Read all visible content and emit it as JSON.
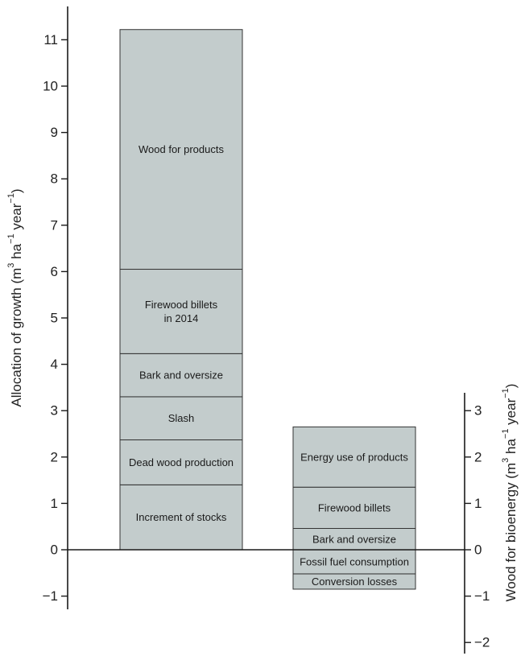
{
  "colors": {
    "bar_fill": "#c3cccc",
    "bar_stroke": "#333333",
    "axis": "#1a1a1a",
    "background": "#ffffff"
  },
  "chart_data": {
    "type": "bar",
    "stacked": true,
    "grid": false,
    "legend": "none",
    "left_axis": {
      "label_parts": [
        {
          "text": "Allocation of growth (m",
          "sup": false
        },
        {
          "text": "3",
          "sup": true
        },
        {
          "text": " ha",
          "sup": false
        },
        {
          "text": "−1",
          "sup": true
        },
        {
          "text": " year",
          "sup": false
        },
        {
          "text": "−1",
          "sup": true
        },
        {
          "text": ")",
          "sup": false
        }
      ],
      "ylim": [
        -1.3,
        11.9
      ],
      "ticks": [
        -1,
        0,
        1,
        2,
        3,
        4,
        5,
        6,
        7,
        8,
        9,
        10,
        11
      ],
      "tick_labels": [
        "−1",
        "0",
        "1",
        "2",
        "3",
        "4",
        "5",
        "6",
        "7",
        "8",
        "9",
        "10",
        "11"
      ]
    },
    "right_axis": {
      "label_parts": [
        {
          "text": "Wood for bioenergy (m",
          "sup": false
        },
        {
          "text": "3",
          "sup": true
        },
        {
          "text": " ha",
          "sup": false
        },
        {
          "text": "−1",
          "sup": true
        },
        {
          "text": " year",
          "sup": false
        },
        {
          "text": "−1",
          "sup": true
        },
        {
          "text": ")",
          "sup": false
        }
      ],
      "ylim": [
        -2.3,
        3.4
      ],
      "ticks": [
        -2,
        -1,
        0,
        1,
        2,
        3
      ],
      "tick_labels": [
        "−2",
        "−1",
        "0",
        "1",
        "2",
        "3"
      ]
    },
    "bars": [
      {
        "axis": "left",
        "segments": [
          {
            "label_lines": [
              "Increment of stocks"
            ],
            "from": 0,
            "to": 1.4
          },
          {
            "label_lines": [
              "Dead wood production"
            ],
            "from": 1.4,
            "to": 2.37
          },
          {
            "label_lines": [
              "Slash"
            ],
            "from": 2.37,
            "to": 3.3
          },
          {
            "label_lines": [
              "Bark and oversize"
            ],
            "from": 3.3,
            "to": 4.23
          },
          {
            "label_lines": [
              "Firewood billets",
              "in 2014"
            ],
            "from": 4.23,
            "to": 6.05
          },
          {
            "label_lines": [
              "Wood for products"
            ],
            "from": 6.05,
            "to": 11.22
          }
        ]
      },
      {
        "axis": "right",
        "segments": [
          {
            "label_lines": [
              "Conversion losses"
            ],
            "from": -0.85,
            "to": -0.52
          },
          {
            "label_lines": [
              "Fossil fuel consumption"
            ],
            "from": -0.52,
            "to": 0
          },
          {
            "label_lines": [
              "Bark and oversize"
            ],
            "from": 0,
            "to": 0.46
          },
          {
            "label_lines": [
              "Firewood billets"
            ],
            "from": 0.46,
            "to": 1.35
          },
          {
            "label_lines": [
              "Energy use of products"
            ],
            "from": 1.35,
            "to": 2.65
          }
        ]
      }
    ]
  }
}
